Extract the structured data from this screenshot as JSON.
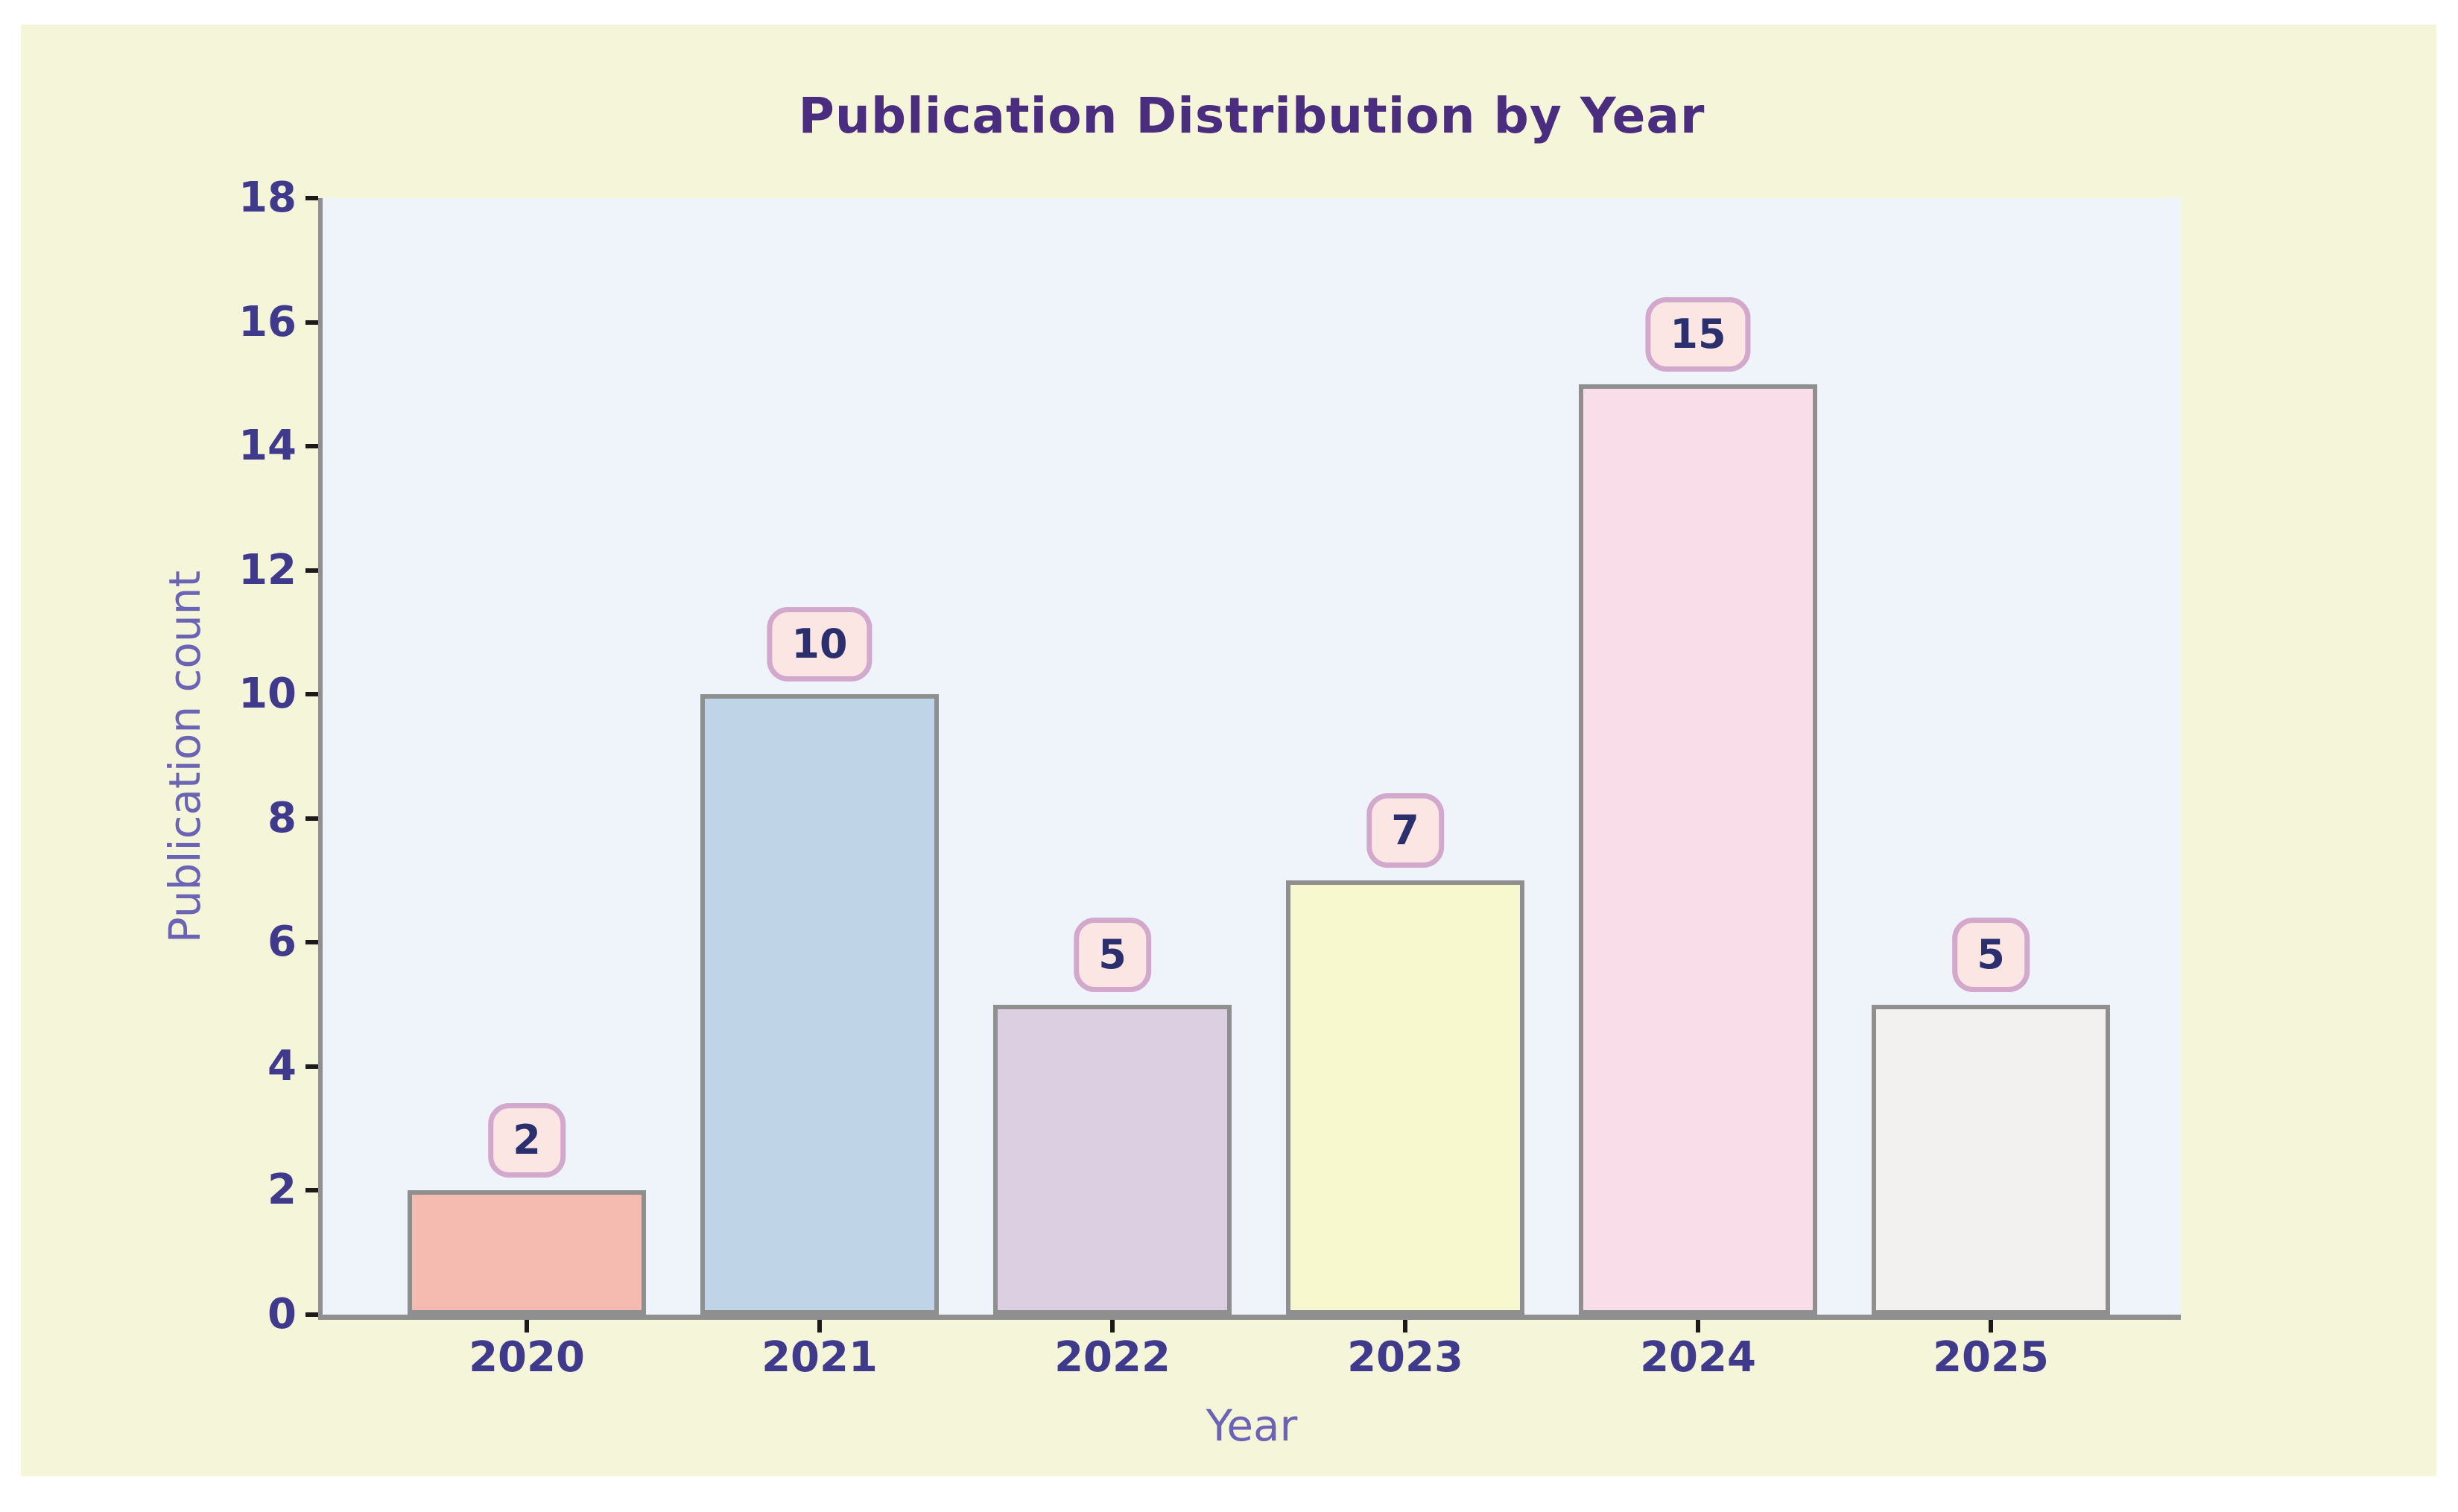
{
  "chart_data": {
    "type": "bar",
    "title": "Publication Distribution by Year",
    "xlabel": "Year",
    "ylabel": "Publication count",
    "categories": [
      "2020",
      "2021",
      "2022",
      "2023",
      "2024",
      "2025"
    ],
    "values": [
      2,
      10,
      5,
      7,
      15,
      5
    ],
    "value_labels": [
      "2",
      "10",
      "5",
      "7",
      "15",
      "5"
    ],
    "ylim": [
      0,
      18
    ],
    "yticks": [
      0,
      2,
      4,
      6,
      8,
      10,
      12,
      14,
      16,
      18
    ],
    "grid": false,
    "legend": null,
    "bar_colors": [
      "#f5bab0",
      "#c0d4e7",
      "#dccfe2",
      "#f8f8cf",
      "#f9dde8",
      "#f2f1ef"
    ],
    "bar_edge_color": "#8f8f8f",
    "colors": {
      "figure_background": "#f5f5da",
      "plot_background": "#eff3fa",
      "title_text": "#4a2d7f",
      "tick_label_text": "#3f3a8c",
      "axis_label_text": "#6b63b4",
      "badge_background": "#fce6e3",
      "badge_border": "#d2a8cd",
      "badge_text": "#2b2f6e",
      "tick_mark": "#1a1a1a"
    }
  }
}
